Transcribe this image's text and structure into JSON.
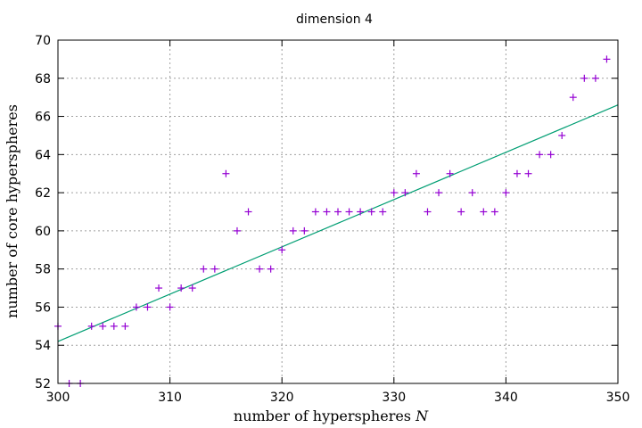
{
  "chart_data": {
    "type": "scatter",
    "title": "dimension 4",
    "xlabel": "number of hyperspheres ",
    "xlabel_var": "N",
    "ylabel": "number of core hyperspheres",
    "xlim": [
      300,
      350
    ],
    "ylim": [
      52,
      70
    ],
    "xticks": [
      300,
      310,
      320,
      330,
      340,
      350
    ],
    "yticks": [
      52,
      54,
      56,
      58,
      60,
      62,
      64,
      66,
      68,
      70
    ],
    "grid": true,
    "legend": "none",
    "series": [
      {
        "marker": "plus",
        "color": "#9400d3",
        "x": [
          300,
          301,
          302,
          303,
          304,
          305,
          306,
          307,
          308,
          309,
          310,
          311,
          312,
          313,
          314,
          315,
          316,
          317,
          318,
          319,
          320,
          321,
          322,
          323,
          324,
          325,
          326,
          327,
          328,
          329,
          330,
          331,
          332,
          333,
          334,
          335,
          336,
          337,
          338,
          339,
          340,
          341,
          342,
          343,
          344,
          345,
          346,
          347,
          348,
          349
        ],
        "y": [
          55,
          52,
          52,
          55,
          55,
          55,
          55,
          56,
          56,
          57,
          56,
          57,
          57,
          58,
          58,
          63,
          60,
          61,
          58,
          58,
          59,
          60,
          60,
          61,
          61,
          61,
          61,
          61,
          61,
          61,
          62,
          62,
          63,
          61,
          62,
          63,
          61,
          62,
          61,
          61,
          62,
          63,
          63,
          64,
          64,
          65,
          67,
          68,
          68,
          69
        ]
      }
    ],
    "fit_line": {
      "color": "#009e73",
      "x": [
        300,
        350
      ],
      "y": [
        54.2,
        66.6
      ]
    }
  }
}
